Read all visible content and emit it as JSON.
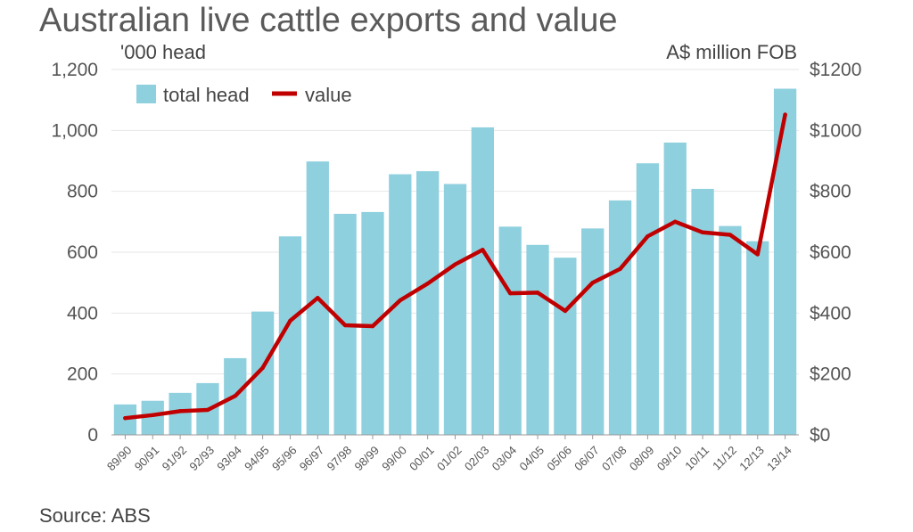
{
  "title": "Australian live cattle exports and value",
  "left_unit": "'000 head",
  "right_unit": "A$ million FOB",
  "source": "Source: ABS",
  "chart_data": {
    "type": "bar",
    "categories": [
      "89/90",
      "90/91",
      "91/92",
      "92/93",
      "93/94",
      "94/95",
      "95/96",
      "96/97",
      "97/98",
      "98/99",
      "99/00",
      "00/01",
      "01/02",
      "02/03",
      "03/04",
      "04/05",
      "05/06",
      "06/07",
      "07/08",
      "08/09",
      "09/10",
      "10/11",
      "11/12",
      "12/13",
      "13/14"
    ],
    "series": [
      {
        "name": "total head",
        "type": "bar",
        "axis": "left",
        "color": "#8fd0de",
        "values": [
          100,
          112,
          138,
          170,
          252,
          405,
          652,
          898,
          726,
          732,
          856,
          866,
          824,
          1010,
          684,
          624,
          582,
          678,
          770,
          892,
          960,
          808,
          686,
          636,
          1137
        ]
      },
      {
        "name": "value",
        "type": "line",
        "axis": "right",
        "color": "#c00000",
        "values": [
          55,
          65,
          78,
          82,
          128,
          220,
          375,
          450,
          360,
          357,
          442,
          497,
          560,
          608,
          465,
          467,
          407,
          500,
          545,
          652,
          700,
          665,
          657,
          593,
          1052
        ]
      }
    ],
    "y_left": {
      "ylim": [
        0,
        1200
      ],
      "ticks": [
        "0",
        "200",
        "400",
        "600",
        "800",
        "1,000",
        "1,200"
      ]
    },
    "y_right": {
      "ylim": [
        0,
        1200
      ],
      "ticks": [
        "$0",
        "$200",
        "$400",
        "$600",
        "$800",
        "$1000",
        "$1200"
      ]
    },
    "grid": true,
    "legend_position": "top-left"
  }
}
